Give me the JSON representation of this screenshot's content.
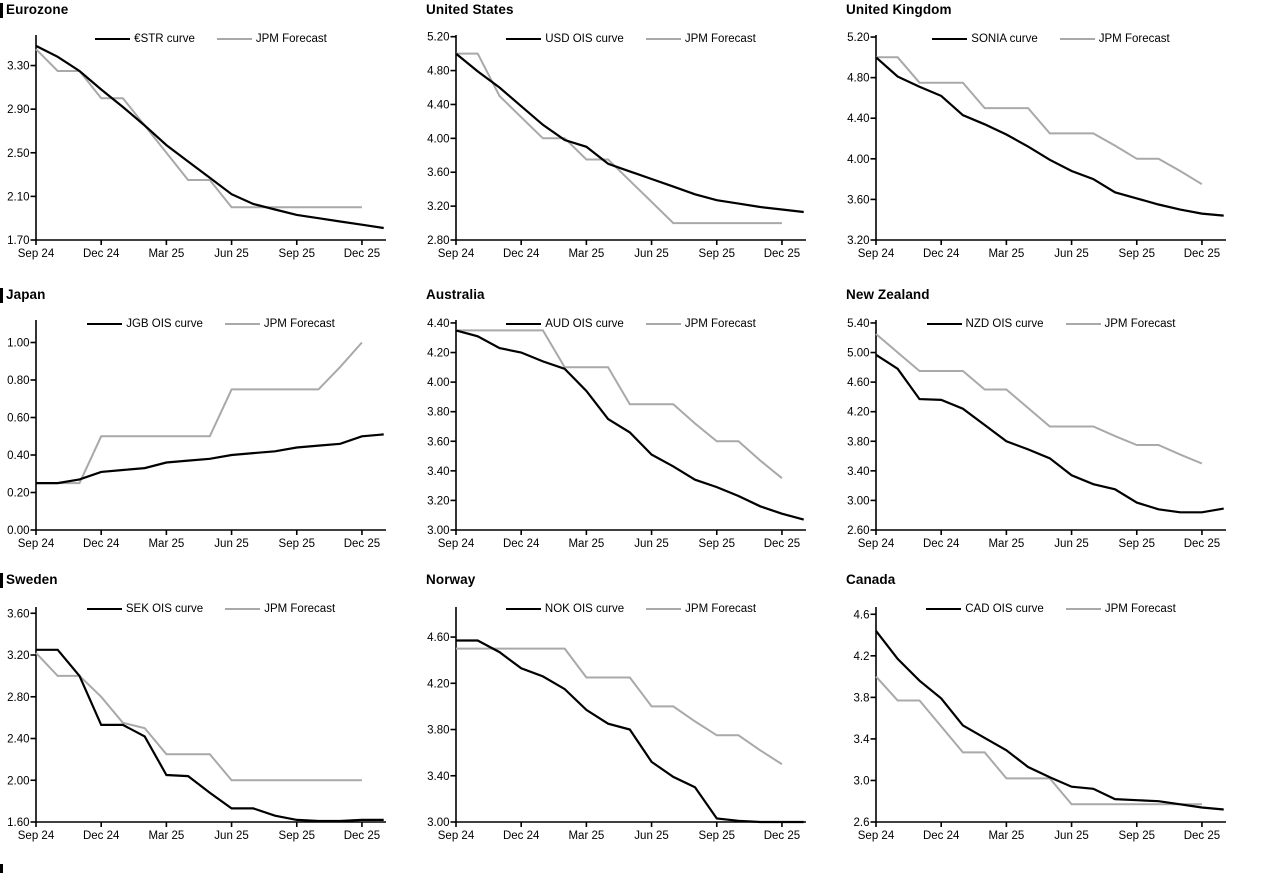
{
  "page": {
    "x_tick_labels": [
      "Sep 24",
      "Dec 24",
      "Mar 25",
      "Jun 25",
      "Sep 25",
      "Dec 25"
    ],
    "x_tick_months": [
      0,
      3,
      6,
      9,
      12,
      15
    ],
    "xlim_months": [
      0,
      16.1
    ],
    "forecast_label": "JPM Forecast"
  },
  "colors": {
    "curve_black": "#000000",
    "forecast_gray": "#a9a9a9",
    "axis": "#000000"
  },
  "chart_data": [
    {
      "type": "line",
      "title": "Eurozone",
      "left_section_bar": true,
      "ylim": [
        1.7,
        3.58
      ],
      "y_ticks": [
        1.7,
        2.1,
        2.5,
        2.9,
        3.3
      ],
      "y_tick_labels": [
        "1.70",
        "2.10",
        "2.50",
        "2.90",
        "3.30"
      ],
      "series": [
        {
          "name": "€STR curve",
          "color": "#000000",
          "values": [
            3.48,
            3.38,
            3.25,
            3.08,
            2.92,
            2.75,
            2.57,
            2.42,
            2.27,
            2.12,
            2.03,
            1.98,
            1.93,
            1.9,
            1.87,
            1.84,
            1.81
          ]
        },
        {
          "name": "JPM Forecast",
          "color": "#a9a9a9",
          "values": [
            3.45,
            3.25,
            3.25,
            3.0,
            3.0,
            2.75,
            2.5,
            2.25,
            2.25,
            2.0,
            2.0,
            2.0,
            2.0,
            2.0,
            2.0,
            2.0
          ]
        }
      ]
    },
    {
      "type": "line",
      "title": "United States",
      "left_section_bar": false,
      "ylim": [
        2.8,
        5.22
      ],
      "y_ticks": [
        2.8,
        3.2,
        3.6,
        4.0,
        4.4,
        4.8,
        5.2
      ],
      "y_tick_labels": [
        "2.80",
        "3.20",
        "3.60",
        "4.00",
        "4.40",
        "4.80",
        "5.20"
      ],
      "series": [
        {
          "name": "USD OIS curve",
          "color": "#000000",
          "values": [
            5.0,
            4.79,
            4.6,
            4.38,
            4.16,
            3.98,
            3.9,
            3.7,
            3.61,
            3.52,
            3.43,
            3.34,
            3.27,
            3.23,
            3.19,
            3.16,
            3.13
          ]
        },
        {
          "name": "JPM Forecast",
          "color": "#a9a9a9",
          "values": [
            5.0,
            5.0,
            4.5,
            4.25,
            4.0,
            4.0,
            3.75,
            3.75,
            3.5,
            3.25,
            3.0,
            3.0,
            3.0,
            3.0,
            3.0,
            3.0
          ]
        }
      ]
    },
    {
      "type": "line",
      "title": "United Kingdom",
      "left_section_bar": false,
      "ylim": [
        3.2,
        5.22
      ],
      "y_ticks": [
        3.2,
        3.6,
        4.0,
        4.4,
        4.8,
        5.2
      ],
      "y_tick_labels": [
        "3.20",
        "3.60",
        "4.00",
        "4.40",
        "4.80",
        "5.20"
      ],
      "series": [
        {
          "name": "SONIA curve",
          "color": "#000000",
          "values": [
            5.0,
            4.81,
            4.71,
            4.62,
            4.43,
            4.34,
            4.24,
            4.12,
            3.99,
            3.88,
            3.8,
            3.67,
            3.61,
            3.55,
            3.5,
            3.46,
            3.44
          ]
        },
        {
          "name": "JPM Forecast",
          "color": "#a9a9a9",
          "values": [
            5.0,
            5.0,
            4.75,
            4.75,
            4.75,
            4.5,
            4.5,
            4.5,
            4.25,
            4.25,
            4.25,
            4.13,
            4.0,
            4.0,
            3.88,
            3.75
          ]
        }
      ]
    },
    {
      "type": "line",
      "title": "Japan",
      "left_section_bar": true,
      "ylim": [
        0.0,
        1.12
      ],
      "y_ticks": [
        0.0,
        0.2,
        0.4,
        0.6,
        0.8,
        1.0
      ],
      "y_tick_labels": [
        "0.00",
        "0.20",
        "0.40",
        "0.60",
        "0.80",
        "1.00"
      ],
      "series": [
        {
          "name": "JGB OIS curve",
          "color": "#000000",
          "values": [
            0.25,
            0.25,
            0.27,
            0.31,
            0.32,
            0.33,
            0.36,
            0.37,
            0.38,
            0.4,
            0.41,
            0.42,
            0.44,
            0.45,
            0.46,
            0.5,
            0.51
          ]
        },
        {
          "name": "JPM Forecast",
          "color": "#a9a9a9",
          "values": [
            0.25,
            0.25,
            0.25,
            0.5,
            0.5,
            0.5,
            0.5,
            0.5,
            0.5,
            0.75,
            0.75,
            0.75,
            0.75,
            0.75,
            0.87,
            1.0
          ]
        }
      ]
    },
    {
      "type": "line",
      "title": "Australia",
      "left_section_bar": false,
      "ylim": [
        3.0,
        4.42
      ],
      "y_ticks": [
        3.0,
        3.2,
        3.4,
        3.6,
        3.8,
        4.0,
        4.2,
        4.4
      ],
      "y_tick_labels": [
        "3.00",
        "3.20",
        "3.40",
        "3.60",
        "3.80",
        "4.00",
        "4.20",
        "4.40"
      ],
      "series": [
        {
          "name": "AUD OIS curve",
          "color": "#000000",
          "values": [
            4.35,
            4.31,
            4.23,
            4.2,
            4.14,
            4.09,
            3.94,
            3.75,
            3.66,
            3.51,
            3.43,
            3.34,
            3.29,
            3.23,
            3.16,
            3.11,
            3.07
          ]
        },
        {
          "name": "JPM Forecast",
          "color": "#a9a9a9",
          "values": [
            4.35,
            4.35,
            4.35,
            4.35,
            4.35,
            4.1,
            4.1,
            4.1,
            3.85,
            3.85,
            3.85,
            3.72,
            3.6,
            3.6,
            3.47,
            3.35
          ]
        }
      ]
    },
    {
      "type": "line",
      "title": "New Zealand",
      "left_section_bar": false,
      "ylim": [
        2.6,
        5.44
      ],
      "y_ticks": [
        2.6,
        3.0,
        3.4,
        3.8,
        4.2,
        4.6,
        5.0,
        5.4
      ],
      "y_tick_labels": [
        "2.60",
        "3.00",
        "3.40",
        "3.80",
        "4.20",
        "4.60",
        "5.00",
        "5.40"
      ],
      "series": [
        {
          "name": "NZD OIS curve",
          "color": "#000000",
          "values": [
            4.97,
            4.78,
            4.37,
            4.36,
            4.24,
            4.02,
            3.8,
            3.69,
            3.57,
            3.34,
            3.22,
            3.15,
            2.97,
            2.88,
            2.84,
            2.84,
            2.89
          ]
        },
        {
          "name": "JPM Forecast",
          "color": "#a9a9a9",
          "values": [
            5.25,
            5.0,
            4.75,
            4.75,
            4.75,
            4.5,
            4.5,
            4.25,
            4.0,
            4.0,
            4.0,
            3.87,
            3.75,
            3.75,
            3.62,
            3.5
          ]
        }
      ]
    },
    {
      "type": "line",
      "title": "Sweden",
      "left_section_bar": true,
      "ylim": [
        1.6,
        3.66
      ],
      "y_ticks": [
        1.6,
        2.0,
        2.4,
        2.8,
        3.2,
        3.6
      ],
      "y_tick_labels": [
        "1.60",
        "2.00",
        "2.40",
        "2.80",
        "3.20",
        "3.60"
      ],
      "series": [
        {
          "name": "SEK OIS curve",
          "color": "#000000",
          "values": [
            3.25,
            3.25,
            3.0,
            2.53,
            2.53,
            2.42,
            2.05,
            2.04,
            1.88,
            1.73,
            1.73,
            1.66,
            1.62,
            1.61,
            1.61,
            1.62,
            1.62
          ]
        },
        {
          "name": "JPM Forecast",
          "color": "#a9a9a9",
          "values": [
            3.22,
            3.0,
            3.0,
            2.8,
            2.55,
            2.5,
            2.25,
            2.25,
            2.25,
            2.0,
            2.0,
            2.0,
            2.0,
            2.0,
            2.0,
            2.0
          ]
        }
      ]
    },
    {
      "type": "line",
      "title": "Norway",
      "left_section_bar": false,
      "ylim": [
        3.0,
        4.86
      ],
      "y_ticks": [
        3.0,
        3.4,
        3.8,
        4.2,
        4.6
      ],
      "y_tick_labels": [
        "3.00",
        "3.40",
        "3.80",
        "4.20",
        "4.60"
      ],
      "series": [
        {
          "name": "NOK OIS curve",
          "color": "#000000",
          "values": [
            4.57,
            4.57,
            4.47,
            4.33,
            4.26,
            4.15,
            3.97,
            3.85,
            3.8,
            3.52,
            3.39,
            3.3,
            3.03,
            3.01,
            3.0,
            3.0,
            3.0
          ]
        },
        {
          "name": "JPM Forecast",
          "color": "#a9a9a9",
          "values": [
            4.5,
            4.5,
            4.5,
            4.5,
            4.5,
            4.5,
            4.25,
            4.25,
            4.25,
            4.0,
            4.0,
            3.87,
            3.75,
            3.75,
            3.62,
            3.5
          ]
        }
      ]
    },
    {
      "type": "line",
      "title": "Canada",
      "left_section_bar": false,
      "ylim": [
        2.6,
        4.67
      ],
      "y_ticks": [
        2.6,
        3.0,
        3.4,
        3.8,
        4.2,
        4.6
      ],
      "y_tick_labels": [
        "2.6",
        "3.0",
        "3.4",
        "3.8",
        "4.2",
        "4.6"
      ],
      "series": [
        {
          "name": "CAD OIS curve",
          "color": "#000000",
          "values": [
            4.44,
            4.17,
            3.96,
            3.79,
            3.53,
            3.41,
            3.29,
            3.13,
            3.03,
            2.94,
            2.92,
            2.82,
            2.81,
            2.8,
            2.77,
            2.74,
            2.72
          ]
        },
        {
          "name": "JPM Forecast",
          "color": "#a9a9a9",
          "values": [
            4.0,
            3.77,
            3.77,
            3.52,
            3.27,
            3.27,
            3.02,
            3.02,
            3.02,
            2.77,
            2.77,
            2.77,
            2.77,
            2.77,
            2.77,
            2.77
          ]
        }
      ]
    }
  ]
}
